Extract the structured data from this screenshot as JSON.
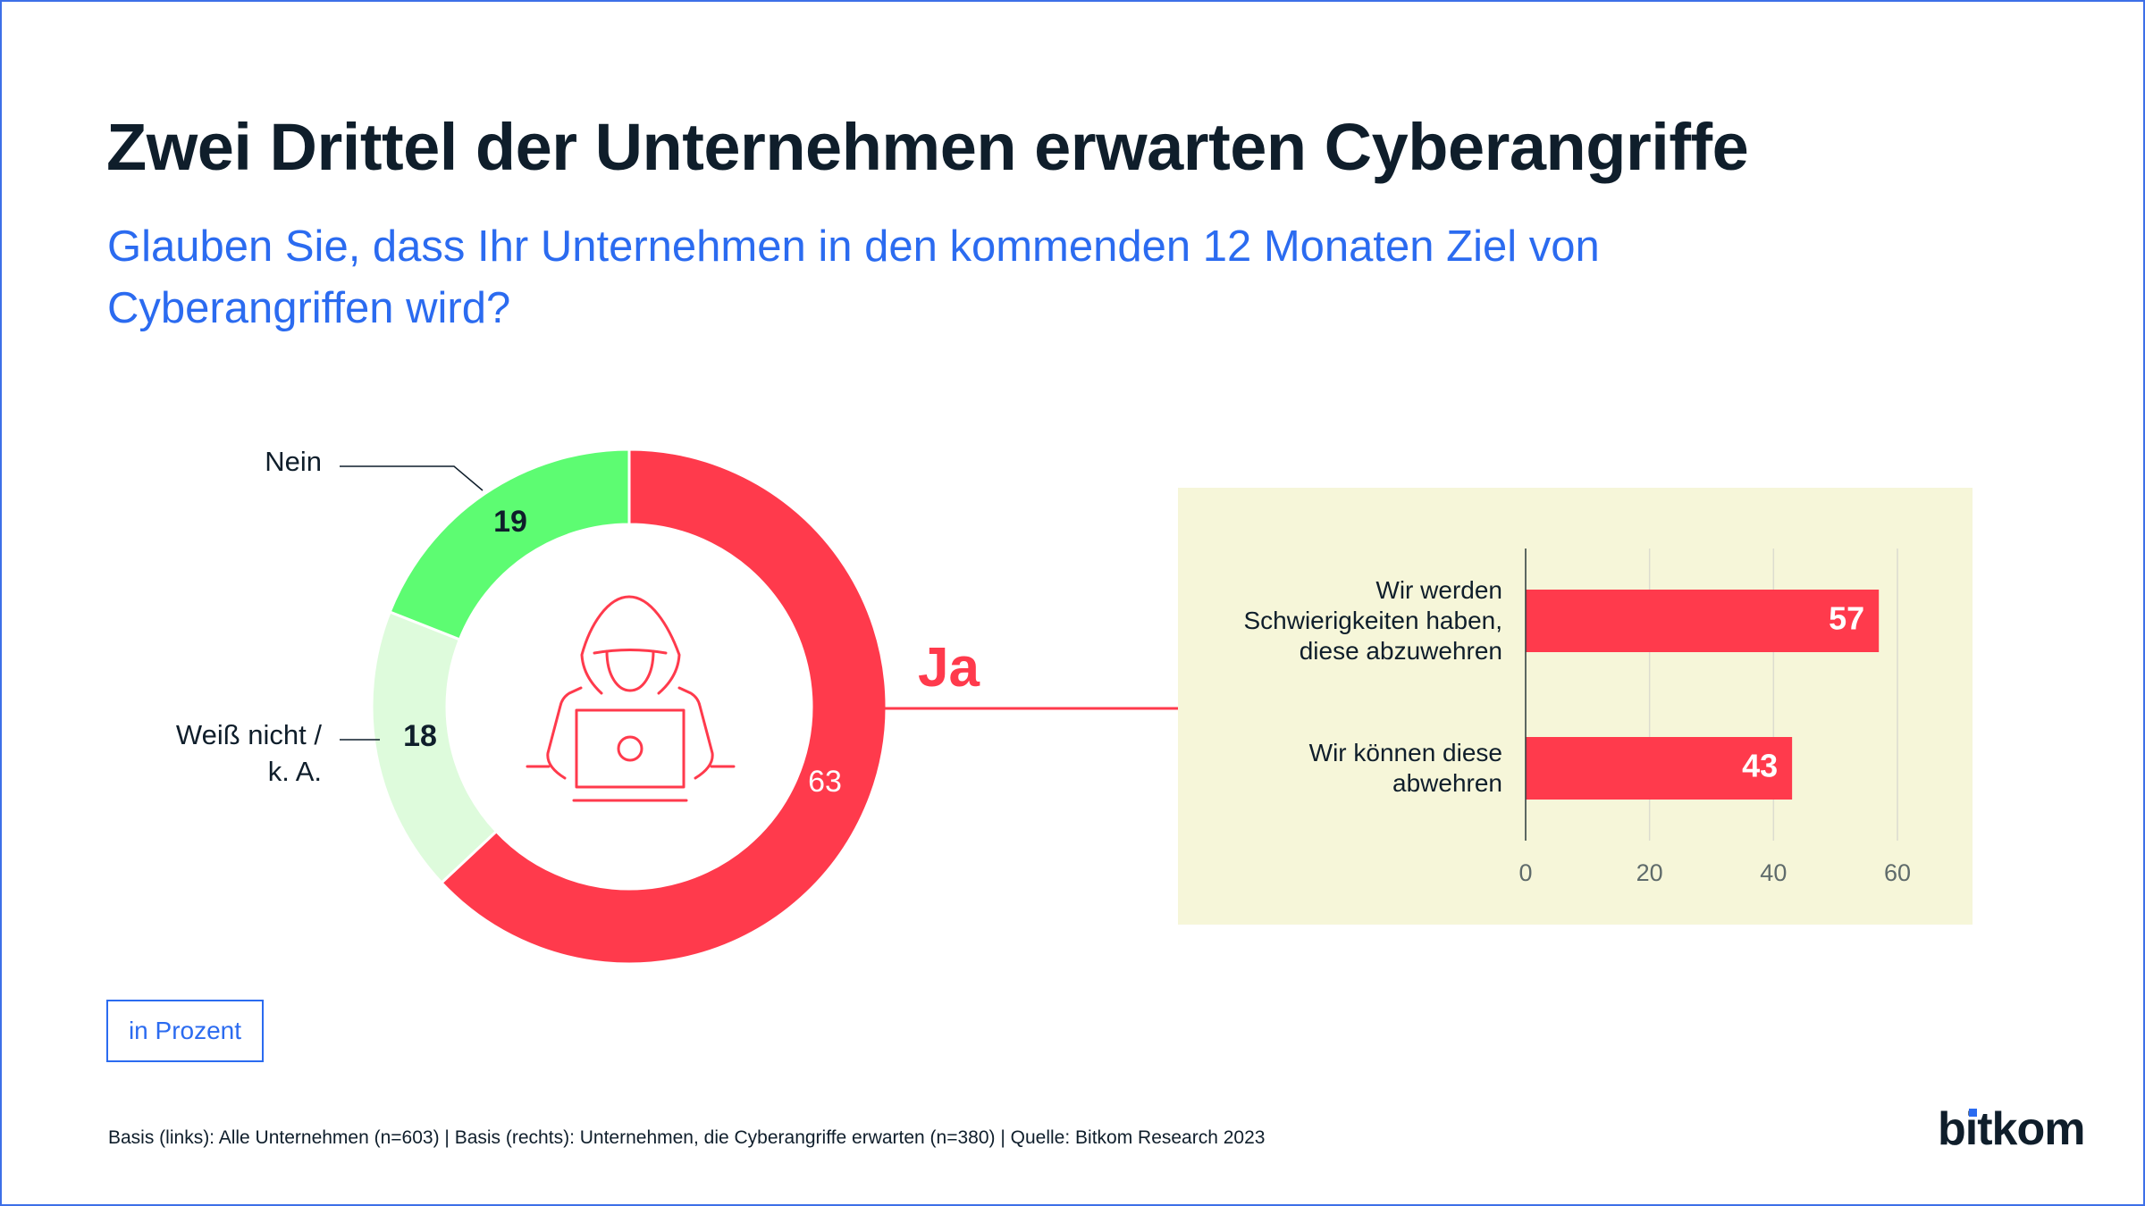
{
  "title": "Zwei Drittel der Unternehmen erwarten Cyberangriffe",
  "subtitle": "Glauben Sie, dass Ihr Unternehmen in den kommenden 12 Monaten Ziel von Cyberangriffen wird?",
  "unit_label": "in Prozent",
  "footer": "Basis (links): Alle Unternehmen (n=603) | Basis (rechts): Unternehmen, die Cyberangriffe erwarten (n=380) | Quelle: Bitkom Research  2023",
  "logo": "bitkom",
  "center_icon": "hacker-laptop-icon",
  "chart_data": [
    {
      "type": "pie",
      "variant": "donut",
      "categories": [
        "Ja",
        "Weiß nicht / k. A.",
        "Nein"
      ],
      "values": [
        63,
        18,
        19
      ],
      "labels": {
        "ja": "Ja",
        "weiss_nicht_1": "Weiß nicht /",
        "weiss_nicht_2": "k. A.",
        "nein": "Nein"
      },
      "value_labels": [
        "63",
        "18",
        "19"
      ],
      "colors": [
        "#ff3a4c",
        "#defbdc",
        "#5dfc72"
      ]
    },
    {
      "type": "bar",
      "orientation": "horizontal",
      "categories": [
        [
          "Wir werden",
          "Schwierigkeiten haben,",
          "diese abzuwehren"
        ],
        [
          "Wir können diese",
          "abwehren"
        ]
      ],
      "values": [
        57,
        43
      ],
      "value_labels": [
        "57",
        "43"
      ],
      "xlim": [
        0,
        60
      ],
      "xticks": [
        "0",
        "20",
        "40",
        "60"
      ],
      "grid": true,
      "color": "#ff3a4c",
      "background": "#f6f6d9"
    }
  ]
}
